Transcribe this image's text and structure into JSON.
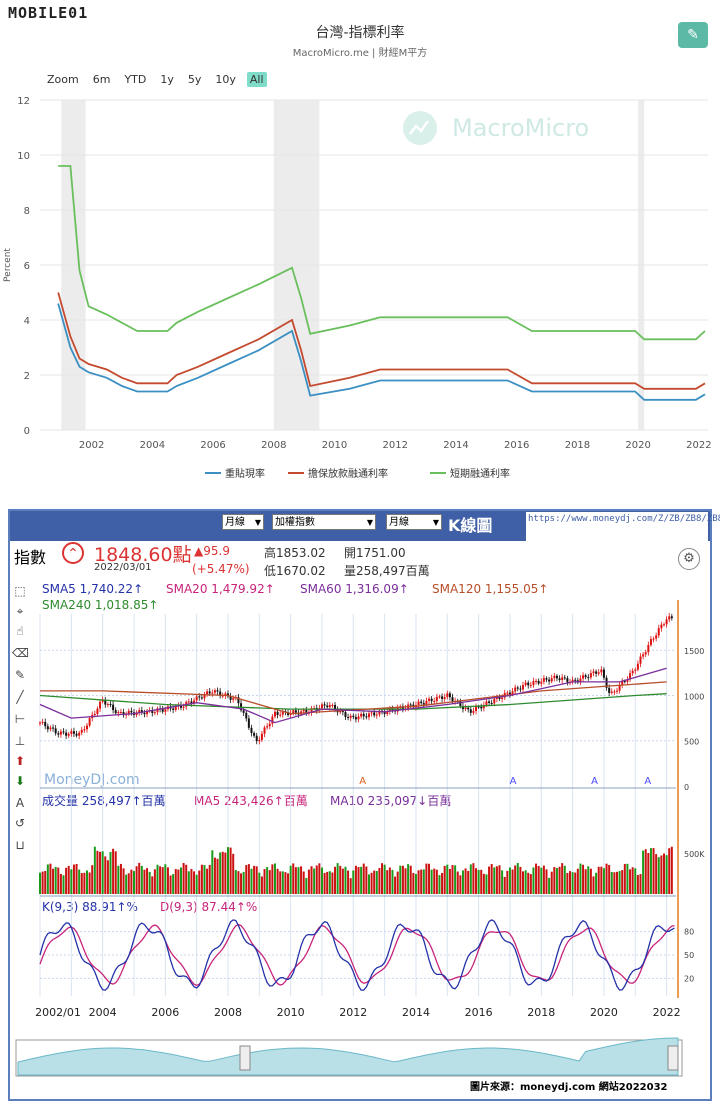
{
  "logo": "MOBILE01",
  "panel1": {
    "title": "台灣-指標利率",
    "subtitle": "MacroMicro.me | 財經M平方",
    "watermark": "MacroMicro",
    "zoom_label": "Zoom",
    "zoom_options": [
      "6m",
      "YTD",
      "1y",
      "5y",
      "10y",
      "All"
    ],
    "zoom_active": "All",
    "edit_icon": "pencil-icon"
  },
  "chart_data": [
    {
      "type": "line",
      "ylabel": "Percent",
      "ylim": [
        0,
        12
      ],
      "yticks": [
        0,
        2,
        4,
        6,
        8,
        10,
        12
      ],
      "xlim": [
        2000.3,
        2022.3
      ],
      "xticks": [
        "2002",
        "2004",
        "2006",
        "2008",
        "2010",
        "2012",
        "2014",
        "2016",
        "2018",
        "2020",
        "2022"
      ],
      "recession_bands": [
        [
          2001.0,
          2001.8
        ],
        [
          2008.0,
          2009.5
        ],
        [
          2020.0,
          2020.2
        ]
      ],
      "series": [
        {
          "name": "重貼現率",
          "color": "#3b8fc2",
          "x": [
            2000.9,
            2001.3,
            2001.6,
            2001.9,
            2002.5,
            2003.0,
            2003.5,
            2004.5,
            2004.8,
            2005.5,
            2006.5,
            2007.5,
            2008.6,
            2008.9,
            2009.2,
            2010.5,
            2011.5,
            2015.7,
            2016.5,
            2019.9,
            2020.2,
            2021.9,
            2022.2
          ],
          "y": [
            4.6,
            3.0,
            2.3,
            2.1,
            1.9,
            1.6,
            1.4,
            1.4,
            1.6,
            1.9,
            2.4,
            2.9,
            3.6,
            2.5,
            1.25,
            1.5,
            1.8,
            1.8,
            1.4,
            1.4,
            1.1,
            1.1,
            1.3
          ]
        },
        {
          "name": "擔保放款融通利率",
          "color": "#c44a2f",
          "x": [
            2000.9,
            2001.3,
            2001.6,
            2001.9,
            2002.5,
            2003.0,
            2003.5,
            2004.5,
            2004.8,
            2005.5,
            2006.5,
            2007.5,
            2008.6,
            2008.9,
            2009.2,
            2010.5,
            2011.5,
            2015.7,
            2016.5,
            2019.9,
            2020.2,
            2021.9,
            2022.2
          ],
          "y": [
            5.0,
            3.4,
            2.6,
            2.4,
            2.2,
            1.9,
            1.7,
            1.7,
            2.0,
            2.3,
            2.8,
            3.3,
            4.0,
            2.9,
            1.6,
            1.9,
            2.2,
            2.2,
            1.7,
            1.7,
            1.5,
            1.5,
            1.7
          ]
        },
        {
          "name": "短期融通利率",
          "color": "#6abf5d",
          "x": [
            2000.9,
            2001.3,
            2001.6,
            2001.9,
            2002.5,
            2003.0,
            2003.5,
            2004.5,
            2004.8,
            2005.5,
            2006.5,
            2007.5,
            2008.6,
            2008.9,
            2009.2,
            2010.5,
            2011.5,
            2015.7,
            2016.5,
            2019.9,
            2020.2,
            2021.9,
            2022.2
          ],
          "y": [
            9.6,
            9.6,
            5.8,
            4.5,
            4.2,
            3.9,
            3.6,
            3.6,
            3.9,
            4.3,
            4.8,
            5.3,
            5.9,
            4.8,
            3.5,
            3.8,
            4.1,
            4.1,
            3.6,
            3.6,
            3.3,
            3.3,
            3.6
          ]
        }
      ],
      "legend_position": "bottom-center"
    },
    {
      "type": "line",
      "ylim": [
        0,
        1900
      ],
      "yticks": [
        0,
        500,
        1000,
        1500
      ],
      "xlim": [
        2002.0,
        2022.3
      ],
      "xticks": [
        "2002/01",
        "2004",
        "2006",
        "2008",
        "2010",
        "2012",
        "2014",
        "2016",
        "2018",
        "2020",
        "2022"
      ],
      "series": [
        {
          "name": "指數",
          "color": "#8b1a1a",
          "x": [
            2002.0,
            2002.6,
            2003.3,
            2004.0,
            2004.5,
            2005.5,
            2006.5,
            2007.5,
            2008.3,
            2008.9,
            2009.5,
            2010.5,
            2011.2,
            2011.9,
            2013.0,
            2014.0,
            2015.0,
            2015.7,
            2016.5,
            2017.5,
            2018.5,
            2019.0,
            2019.9,
            2020.2,
            2020.9,
            2021.5,
            2022.0
          ],
          "y": [
            700,
            580,
            580,
            950,
            800,
            820,
            880,
            1050,
            950,
            480,
            800,
            820,
            900,
            750,
            820,
            900,
            1000,
            820,
            950,
            1120,
            1200,
            1150,
            1280,
            1000,
            1250,
            1600,
            1850
          ]
        },
        {
          "name": "SMA240",
          "color": "#2e8b2e",
          "x": [
            2002.0,
            2006.0,
            2010.0,
            2014.0,
            2017.0,
            2019.0,
            2021.0,
            2022.0
          ],
          "y": [
            1000,
            900,
            850,
            850,
            900,
            950,
            1000,
            1020
          ]
        },
        {
          "name": "SMA120",
          "color": "#b84e2a",
          "x": [
            2002.0,
            2004.0,
            2008.0,
            2010.0,
            2014.0,
            2018.0,
            2020.0,
            2022.0
          ],
          "y": [
            1050,
            1050,
            1000,
            800,
            880,
            1050,
            1100,
            1150
          ]
        },
        {
          "name": "SMA60",
          "color": "#7a2e9a",
          "x": [
            2002.0,
            2003.0,
            2005.0,
            2007.0,
            2008.5,
            2009.5,
            2011.0,
            2013.0,
            2015.0,
            2017.0,
            2019.0,
            2020.5,
            2022.0
          ],
          "y": [
            900,
            750,
            800,
            920,
            850,
            700,
            850,
            820,
            900,
            1000,
            1150,
            1150,
            1300
          ]
        }
      ]
    },
    {
      "type": "bar",
      "xlim": [
        2002.0,
        2022.3
      ],
      "ylim": [
        0,
        1000
      ],
      "yticks": [
        500
      ]
    },
    {
      "type": "line",
      "ylim": [
        0,
        100
      ],
      "yticks": [
        20,
        50,
        80
      ],
      "xlim": [
        2002.0,
        2022.3
      ],
      "series": [
        {
          "name": "K(9,3)",
          "color": "#2432a8"
        },
        {
          "name": "D(9,3)",
          "color": "#c8247a"
        }
      ]
    }
  ],
  "legend1": [
    "重貼現率",
    "擔保放款融通利率",
    "短期融通利率"
  ],
  "panel2": {
    "period": "月線",
    "market": "加權指數",
    "freq": "月線",
    "kline": "K線圖",
    "url": "https://www.moneydj.com/Z/ZB/ZB8/ZB8.djhtm",
    "index_label": "指數",
    "price": "1848.60點",
    "date": "2022/03/01",
    "change": "▲95.9",
    "change_pct": "(+5.47%)",
    "high": "高1853.02",
    "open": "開1751.00",
    "low": "低1670.02",
    "volume": "量258,497百萬",
    "sma5": "SMA5 1,740.22↑",
    "sma20": "SMA20 1,479.92↑",
    "sma60": "SMA60 1,316.09↑",
    "sma120": "SMA120 1,155.05↑",
    "sma240": "SMA240 1,018.85↑",
    "watermark": "MoneyDJ.com",
    "vol_label": "成交量 258,497↑百萬",
    "vol_ma5": "MA5 243,426↑百萬",
    "vol_ma10": "MA10 235,097↓百萬",
    "kd_k": "K(9,3) 88.91↑%",
    "kd_d": "D(9,3) 87.44↑%",
    "source": "圖片來源：moneydj.com 網站2022032",
    "price_axis": [
      "1500",
      "1000",
      "500",
      "0"
    ],
    "vol_axis": [
      "500K"
    ],
    "kd_axis": [
      "80",
      "50",
      "20"
    ]
  }
}
